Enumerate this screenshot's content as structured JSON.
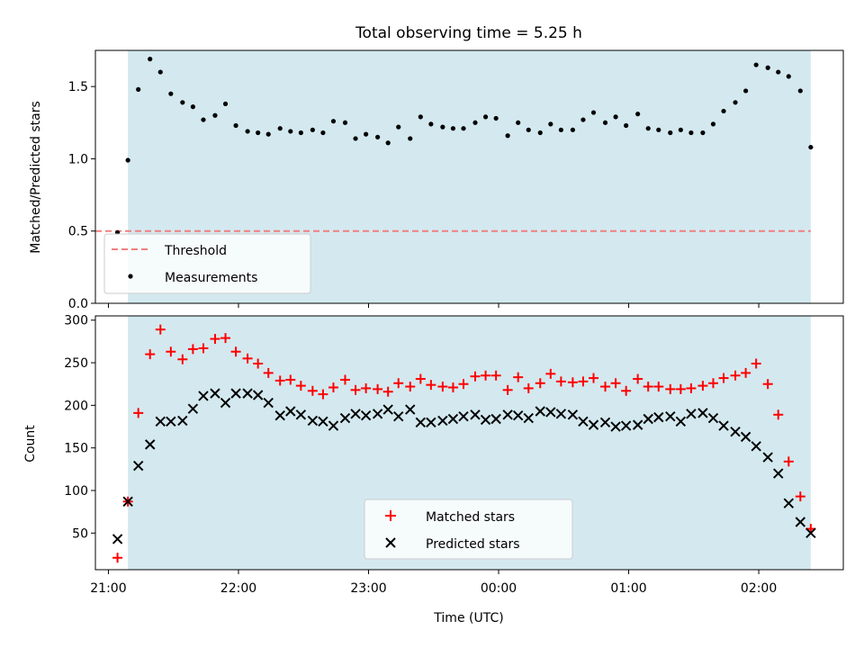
{
  "figure": {
    "title": "Total observing time = 5.25 h",
    "shaded_color": "#d3e9ef",
    "xlabel": "Time (UTC)"
  },
  "chart_data": [
    {
      "type": "scatter",
      "panel": "top",
      "ylabel": "Matched/Predicted stars",
      "ylim": [
        0,
        1.75
      ],
      "yticks": [
        0.0,
        0.5,
        1.0,
        1.5
      ],
      "yticklabels": [
        "0.0",
        "0.5",
        "1.0",
        "1.5"
      ],
      "xlim_hours": [
        20.9,
        26.65
      ],
      "shaded_range_hours": [
        21.15,
        26.4
      ],
      "xticks_hours": [
        21,
        22,
        23,
        24,
        25,
        26
      ],
      "threshold": {
        "name": "Threshold",
        "value": 0.5,
        "color": "#f08080",
        "style": "dashed"
      },
      "legend": {
        "position": "lower-left",
        "entries": [
          "Threshold",
          "Measurements"
        ]
      },
      "series": [
        {
          "name": "Measurements",
          "color": "#000000",
          "marker": "dot",
          "x_hours": [
            21.07,
            21.15,
            21.23,
            21.32,
            21.4,
            21.48,
            21.57,
            21.65,
            21.73,
            21.82,
            21.9,
            21.98,
            22.07,
            22.15,
            22.23,
            22.32,
            22.4,
            22.48,
            22.57,
            22.65,
            22.73,
            22.82,
            22.9,
            22.98,
            23.07,
            23.15,
            23.23,
            23.32,
            23.4,
            23.48,
            23.57,
            23.65,
            23.73,
            23.82,
            23.9,
            23.98,
            24.07,
            24.15,
            24.23,
            24.32,
            24.4,
            24.48,
            24.57,
            24.65,
            24.73,
            24.82,
            24.9,
            24.98,
            25.07,
            25.15,
            25.23,
            25.32,
            25.4,
            25.48,
            25.57,
            25.65,
            25.73,
            25.82,
            25.9,
            25.98,
            26.07,
            26.15,
            26.23,
            26.32,
            26.4
          ],
          "y": [
            0.49,
            0.99,
            1.48,
            1.69,
            1.6,
            1.45,
            1.39,
            1.36,
            1.27,
            1.3,
            1.38,
            1.23,
            1.19,
            1.18,
            1.17,
            1.21,
            1.19,
            1.18,
            1.2,
            1.18,
            1.26,
            1.25,
            1.14,
            1.17,
            1.15,
            1.11,
            1.22,
            1.14,
            1.29,
            1.24,
            1.22,
            1.21,
            1.21,
            1.25,
            1.29,
            1.28,
            1.16,
            1.25,
            1.2,
            1.18,
            1.24,
            1.2,
            1.2,
            1.27,
            1.32,
            1.25,
            1.29,
            1.23,
            1.31,
            1.21,
            1.2,
            1.18,
            1.2,
            1.18,
            1.18,
            1.24,
            1.33,
            1.39,
            1.47,
            1.65,
            1.63,
            1.6,
            1.57,
            1.47,
            1.08
          ]
        }
      ]
    },
    {
      "type": "scatter",
      "panel": "bottom",
      "ylabel": "Count",
      "ylim": [
        7,
        305
      ],
      "yticks": [
        50,
        100,
        150,
        200,
        250,
        300
      ],
      "yticklabels": [
        "50",
        "100",
        "150",
        "200",
        "250",
        "300"
      ],
      "xlim_hours": [
        20.9,
        26.65
      ],
      "shaded_range_hours": [
        21.15,
        26.4
      ],
      "xticks_hours": [
        21,
        22,
        23,
        24,
        25,
        26
      ],
      "xticklabels": [
        "21:00",
        "22:00",
        "23:00",
        "00:00",
        "01:00",
        "02:00"
      ],
      "legend": {
        "position": "lower-center",
        "entries": [
          "Matched stars",
          "Predicted stars"
        ]
      },
      "series": [
        {
          "name": "Matched stars",
          "color": "#ff0000",
          "marker": "plus",
          "x_hours": [
            21.07,
            21.15,
            21.23,
            21.32,
            21.4,
            21.48,
            21.57,
            21.65,
            21.73,
            21.82,
            21.9,
            21.98,
            22.07,
            22.15,
            22.23,
            22.32,
            22.4,
            22.48,
            22.57,
            22.65,
            22.73,
            22.82,
            22.9,
            22.98,
            23.07,
            23.15,
            23.23,
            23.32,
            23.4,
            23.48,
            23.57,
            23.65,
            23.73,
            23.82,
            23.9,
            23.98,
            24.07,
            24.15,
            24.23,
            24.32,
            24.4,
            24.48,
            24.57,
            24.65,
            24.73,
            24.82,
            24.9,
            24.98,
            25.07,
            25.15,
            25.23,
            25.32,
            25.4,
            25.48,
            25.57,
            25.65,
            25.73,
            25.82,
            25.9,
            25.98,
            26.07,
            26.15,
            26.23,
            26.32,
            26.4
          ],
          "y": [
            21,
            87,
            191,
            260,
            289,
            263,
            254,
            266,
            267,
            278,
            279,
            263,
            255,
            249,
            238,
            229,
            230,
            223,
            217,
            213,
            221,
            230,
            218,
            220,
            219,
            216,
            226,
            222,
            231,
            224,
            222,
            221,
            225,
            234,
            235,
            235,
            218,
            233,
            220,
            226,
            237,
            228,
            227,
            228,
            232,
            222,
            226,
            217,
            231,
            222,
            222,
            219,
            219,
            220,
            223,
            226,
            232,
            235,
            238,
            249,
            225,
            189,
            134,
            93,
            55
          ]
        },
        {
          "name": "Predicted stars",
          "color": "#000000",
          "marker": "x",
          "x_hours": [
            21.07,
            21.15,
            21.23,
            21.32,
            21.4,
            21.48,
            21.57,
            21.65,
            21.73,
            21.82,
            21.9,
            21.98,
            22.07,
            22.15,
            22.23,
            22.32,
            22.4,
            22.48,
            22.57,
            22.65,
            22.73,
            22.82,
            22.9,
            22.98,
            23.07,
            23.15,
            23.23,
            23.32,
            23.4,
            23.48,
            23.57,
            23.65,
            23.73,
            23.82,
            23.9,
            23.98,
            24.07,
            24.15,
            24.23,
            24.32,
            24.4,
            24.48,
            24.57,
            24.65,
            24.73,
            24.82,
            24.9,
            24.98,
            25.07,
            25.15,
            25.23,
            25.32,
            25.4,
            25.48,
            25.57,
            25.65,
            25.73,
            25.82,
            25.9,
            25.98,
            26.07,
            26.15,
            26.23,
            26.32,
            26.4
          ],
          "y": [
            43,
            87,
            129,
            154,
            181,
            181,
            182,
            196,
            211,
            214,
            203,
            214,
            214,
            212,
            203,
            188,
            193,
            189,
            182,
            181,
            176,
            185,
            190,
            188,
            190,
            195,
            187,
            195,
            180,
            180,
            182,
            184,
            187,
            189,
            183,
            184,
            189,
            188,
            185,
            193,
            192,
            190,
            189,
            181,
            177,
            180,
            175,
            176,
            177,
            184,
            186,
            187,
            181,
            190,
            191,
            185,
            176,
            169,
            163,
            152,
            139,
            120,
            85,
            63,
            50
          ]
        }
      ]
    }
  ]
}
